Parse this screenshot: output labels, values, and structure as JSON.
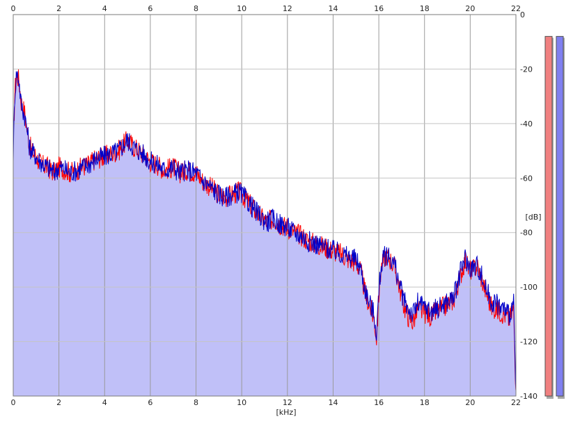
{
  "chart_data": {
    "type": "area",
    "x_unit_label": "[kHz]",
    "y_unit_label": "[dB]",
    "xlim": [
      0,
      22
    ],
    "ylim": [
      -140,
      0
    ],
    "x_ticks": [
      "0",
      "2",
      "4",
      "6",
      "8",
      "10",
      "12",
      "14",
      "16",
      "18",
      "20",
      "22"
    ],
    "y_ticks": [
      "0",
      "-20",
      "-40",
      "-60",
      "-80",
      "-100",
      "-120",
      "-140"
    ],
    "grid": true,
    "fill_color": "#c0c0f8",
    "series": [
      {
        "color": "#ff0000",
        "points": [
          [
            0.0,
            -50
          ],
          [
            0.07,
            -28
          ],
          [
            0.15,
            -22
          ],
          [
            0.25,
            -24
          ],
          [
            0.35,
            -32
          ],
          [
            0.5,
            -36
          ],
          [
            0.6,
            -42
          ],
          [
            0.7,
            -47
          ],
          [
            0.8,
            -50
          ],
          [
            1.0,
            -52
          ],
          [
            1.2,
            -55
          ],
          [
            1.5,
            -56
          ],
          [
            1.8,
            -58
          ],
          [
            2.0,
            -56
          ],
          [
            2.3,
            -57
          ],
          [
            2.5,
            -58
          ],
          [
            2.8,
            -57
          ],
          [
            3.0,
            -56
          ],
          [
            3.3,
            -55
          ],
          [
            3.6,
            -53
          ],
          [
            4.0,
            -52
          ],
          [
            4.3,
            -51
          ],
          [
            4.6,
            -50
          ],
          [
            4.8,
            -48
          ],
          [
            5.0,
            -46
          ],
          [
            5.2,
            -48
          ],
          [
            5.5,
            -50
          ],
          [
            5.8,
            -52
          ],
          [
            6.0,
            -54
          ],
          [
            6.3,
            -55
          ],
          [
            6.6,
            -57
          ],
          [
            7.0,
            -56
          ],
          [
            7.3,
            -58
          ],
          [
            7.6,
            -57
          ],
          [
            8.0,
            -58
          ],
          [
            8.3,
            -61
          ],
          [
            8.6,
            -63
          ],
          [
            9.0,
            -66
          ],
          [
            9.3,
            -67
          ],
          [
            9.6,
            -66
          ],
          [
            9.9,
            -65
          ],
          [
            10.2,
            -68
          ],
          [
            10.5,
            -71
          ],
          [
            10.8,
            -74
          ],
          [
            11.1,
            -76
          ],
          [
            11.4,
            -75
          ],
          [
            11.7,
            -77
          ],
          [
            12.0,
            -78
          ],
          [
            12.3,
            -80
          ],
          [
            12.6,
            -81
          ],
          [
            12.9,
            -83
          ],
          [
            13.2,
            -84
          ],
          [
            13.5,
            -85
          ],
          [
            13.8,
            -86
          ],
          [
            14.1,
            -87
          ],
          [
            14.4,
            -88
          ],
          [
            14.7,
            -90
          ],
          [
            15.0,
            -91
          ],
          [
            15.2,
            -94
          ],
          [
            15.4,
            -102
          ],
          [
            15.6,
            -107
          ],
          [
            15.8,
            -112
          ],
          [
            15.9,
            -119
          ],
          [
            16.0,
            -103
          ],
          [
            16.1,
            -93
          ],
          [
            16.3,
            -88
          ],
          [
            16.5,
            -90
          ],
          [
            16.7,
            -93
          ],
          [
            16.9,
            -100
          ],
          [
            17.1,
            -107
          ],
          [
            17.3,
            -111
          ],
          [
            17.5,
            -113
          ],
          [
            17.7,
            -108
          ],
          [
            17.9,
            -109
          ],
          [
            18.1,
            -110
          ],
          [
            18.3,
            -111
          ],
          [
            18.5,
            -109
          ],
          [
            18.7,
            -108
          ],
          [
            18.9,
            -107
          ],
          [
            19.1,
            -106
          ],
          [
            19.3,
            -104
          ],
          [
            19.5,
            -98
          ],
          [
            19.7,
            -92
          ],
          [
            19.8,
            -90
          ],
          [
            19.9,
            -93
          ],
          [
            20.1,
            -94
          ],
          [
            20.3,
            -92
          ],
          [
            20.5,
            -97
          ],
          [
            20.7,
            -102
          ],
          [
            20.9,
            -107
          ],
          [
            21.1,
            -108
          ],
          [
            21.3,
            -109
          ],
          [
            21.5,
            -110
          ],
          [
            21.7,
            -112
          ],
          [
            21.9,
            -108
          ],
          [
            22.0,
            -138
          ]
        ]
      },
      {
        "color": "#0000c8",
        "points": [
          [
            0.0,
            -51
          ],
          [
            0.07,
            -29
          ],
          [
            0.15,
            -21
          ],
          [
            0.25,
            -24
          ],
          [
            0.35,
            -33
          ],
          [
            0.5,
            -37
          ],
          [
            0.6,
            -42
          ],
          [
            0.7,
            -48
          ],
          [
            0.8,
            -50
          ],
          [
            1.0,
            -52
          ],
          [
            1.2,
            -54
          ],
          [
            1.5,
            -56
          ],
          [
            1.8,
            -58
          ],
          [
            2.0,
            -56
          ],
          [
            2.3,
            -57
          ],
          [
            2.5,
            -58
          ],
          [
            2.8,
            -57
          ],
          [
            3.0,
            -56
          ],
          [
            3.3,
            -55
          ],
          [
            3.6,
            -53
          ],
          [
            4.0,
            -52
          ],
          [
            4.3,
            -51
          ],
          [
            4.6,
            -50
          ],
          [
            4.8,
            -48
          ],
          [
            5.0,
            -46
          ],
          [
            5.2,
            -48
          ],
          [
            5.5,
            -50
          ],
          [
            5.8,
            -52
          ],
          [
            6.0,
            -54
          ],
          [
            6.3,
            -55
          ],
          [
            6.6,
            -57
          ],
          [
            7.0,
            -56
          ],
          [
            7.3,
            -58
          ],
          [
            7.6,
            -57
          ],
          [
            8.0,
            -58
          ],
          [
            8.3,
            -61
          ],
          [
            8.6,
            -63
          ],
          [
            9.0,
            -66
          ],
          [
            9.3,
            -67
          ],
          [
            9.6,
            -66
          ],
          [
            9.9,
            -65
          ],
          [
            10.2,
            -68
          ],
          [
            10.5,
            -71
          ],
          [
            10.8,
            -74
          ],
          [
            11.1,
            -76
          ],
          [
            11.4,
            -75
          ],
          [
            11.7,
            -77
          ],
          [
            12.0,
            -78
          ],
          [
            12.3,
            -80
          ],
          [
            12.6,
            -81
          ],
          [
            12.9,
            -83
          ],
          [
            13.2,
            -84
          ],
          [
            13.5,
            -85
          ],
          [
            13.8,
            -86
          ],
          [
            14.1,
            -87
          ],
          [
            14.4,
            -88
          ],
          [
            14.7,
            -89
          ],
          [
            15.0,
            -90
          ],
          [
            15.2,
            -93
          ],
          [
            15.4,
            -101
          ],
          [
            15.6,
            -106
          ],
          [
            15.8,
            -110
          ],
          [
            15.9,
            -117
          ],
          [
            16.0,
            -102
          ],
          [
            16.1,
            -92
          ],
          [
            16.3,
            -88
          ],
          [
            16.5,
            -89
          ],
          [
            16.7,
            -92
          ],
          [
            16.9,
            -99
          ],
          [
            17.1,
            -105
          ],
          [
            17.3,
            -108
          ],
          [
            17.5,
            -110
          ],
          [
            17.7,
            -106
          ],
          [
            17.9,
            -107
          ],
          [
            18.1,
            -108
          ],
          [
            18.3,
            -109
          ],
          [
            18.5,
            -108
          ],
          [
            18.7,
            -107
          ],
          [
            18.9,
            -106
          ],
          [
            19.1,
            -105
          ],
          [
            19.3,
            -103
          ],
          [
            19.5,
            -97
          ],
          [
            19.7,
            -91
          ],
          [
            19.8,
            -89
          ],
          [
            19.9,
            -92
          ],
          [
            20.1,
            -93
          ],
          [
            20.3,
            -92
          ],
          [
            20.5,
            -96
          ],
          [
            20.7,
            -101
          ],
          [
            20.9,
            -105
          ],
          [
            21.1,
            -106
          ],
          [
            21.3,
            -107
          ],
          [
            21.5,
            -108
          ],
          [
            21.7,
            -110
          ],
          [
            21.9,
            -106
          ],
          [
            22.0,
            -138
          ]
        ]
      }
    ]
  },
  "level_meters": {
    "left": {
      "level_db": -8,
      "color": "#f08080"
    },
    "right": {
      "level_db": -8,
      "color": "#8080f0"
    }
  }
}
